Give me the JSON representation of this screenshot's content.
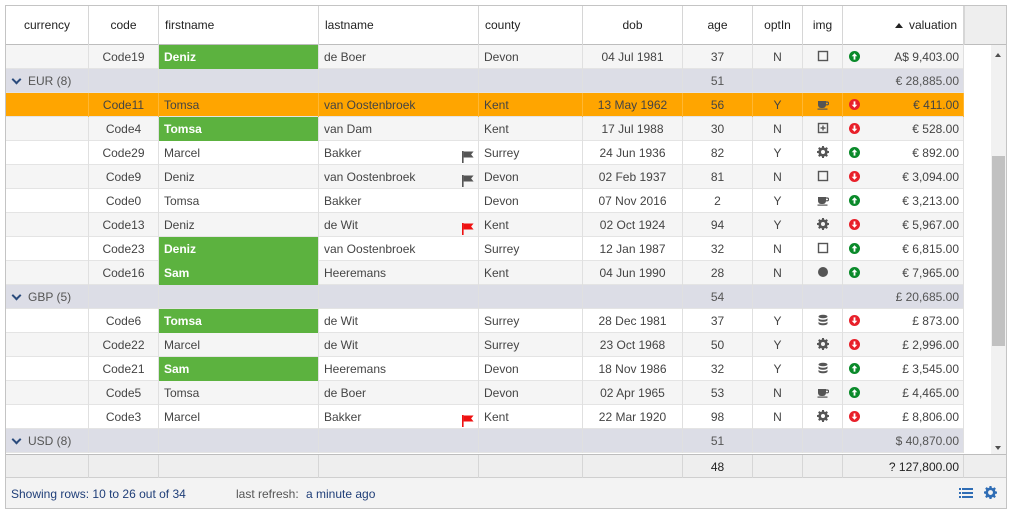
{
  "columns": [
    {
      "key": "currency",
      "label": "currency"
    },
    {
      "key": "code",
      "label": "code"
    },
    {
      "key": "firstname",
      "label": "firstname"
    },
    {
      "key": "lastname",
      "label": "lastname"
    },
    {
      "key": "county",
      "label": "county"
    },
    {
      "key": "dob",
      "label": "dob"
    },
    {
      "key": "age",
      "label": "age"
    },
    {
      "key": "optIn",
      "label": "optIn"
    },
    {
      "key": "img",
      "label": "img"
    },
    {
      "key": "valuation",
      "label": "valuation",
      "sort": "asc"
    }
  ],
  "colors": {
    "group_bg": "#dcdde6",
    "selected_bg": "#ffa500",
    "firstname_highlight": "#5cb23f",
    "trend_up": "#0a8a2a",
    "trend_down": "#e8202a",
    "flag_gray": "#555555",
    "flag_red": "#ee1111",
    "link_text": "#1f3e78"
  },
  "rows": [
    {
      "type": "data",
      "code": "Code19",
      "firstname": "Deniz",
      "highlight": true,
      "lastname": "de Boer",
      "flag": "",
      "county": "Devon",
      "dob": "04 Jul 1981",
      "age": "37",
      "optIn": "N",
      "img": "square-icon",
      "trend": "up",
      "valuation": "A$ 9,403.00"
    },
    {
      "type": "group",
      "label": "EUR (8)",
      "age": "51",
      "valuation": "€ 28,885.00"
    },
    {
      "type": "data",
      "selected": true,
      "code": "Code11",
      "firstname": "Tomsa",
      "highlight": false,
      "lastname": "van Oostenbroek",
      "flag": "",
      "county": "Kent",
      "dob": "13 May 1962",
      "age": "56",
      "optIn": "Y",
      "img": "coffee-icon",
      "trend": "down",
      "valuation": "€ 411.00"
    },
    {
      "type": "data",
      "code": "Code4",
      "firstname": "Tomsa",
      "highlight": true,
      "lastname": "van Dam",
      "flag": "",
      "county": "Kent",
      "dob": "17 Jul 1988",
      "age": "30",
      "optIn": "N",
      "img": "plus-square-icon",
      "trend": "down",
      "valuation": "€ 528.00"
    },
    {
      "type": "data",
      "code": "Code29",
      "firstname": "Marcel",
      "highlight": false,
      "lastname": "Bakker",
      "flag": "gray",
      "county": "Surrey",
      "dob": "24 Jun 1936",
      "age": "82",
      "optIn": "Y",
      "img": "gear-icon",
      "trend": "up",
      "valuation": "€ 892.00"
    },
    {
      "type": "data",
      "code": "Code9",
      "firstname": "Deniz",
      "highlight": false,
      "lastname": "van Oostenbroek",
      "flag": "gray",
      "county": "Devon",
      "dob": "02 Feb 1937",
      "age": "81",
      "optIn": "N",
      "img": "square-icon",
      "trend": "down",
      "valuation": "€ 3,094.00"
    },
    {
      "type": "data",
      "code": "Code0",
      "firstname": "Tomsa",
      "highlight": false,
      "lastname": "Bakker",
      "flag": "",
      "county": "Devon",
      "dob": "07 Nov 2016",
      "age": "2",
      "optIn": "Y",
      "img": "coffee-icon",
      "trend": "up",
      "valuation": "€ 3,213.00"
    },
    {
      "type": "data",
      "code": "Code13",
      "firstname": "Deniz",
      "highlight": false,
      "lastname": "de Wit",
      "flag": "red",
      "county": "Kent",
      "dob": "02 Oct 1924",
      "age": "94",
      "optIn": "Y",
      "img": "gear-icon",
      "trend": "down",
      "valuation": "€ 5,967.00"
    },
    {
      "type": "data",
      "code": "Code23",
      "firstname": "Deniz",
      "highlight": true,
      "lastname": "van Oostenbroek",
      "flag": "",
      "county": "Surrey",
      "dob": "12 Jan 1987",
      "age": "32",
      "optIn": "N",
      "img": "square-icon",
      "trend": "up",
      "valuation": "€ 6,815.00"
    },
    {
      "type": "data",
      "code": "Code16",
      "firstname": "Sam",
      "highlight": true,
      "lastname": "Heeremans",
      "flag": "",
      "county": "Kent",
      "dob": "04 Jun 1990",
      "age": "28",
      "optIn": "N",
      "img": "circle-icon",
      "trend": "up",
      "valuation": "€ 7,965.00"
    },
    {
      "type": "group",
      "label": "GBP (5)",
      "age": "54",
      "valuation": "£ 20,685.00"
    },
    {
      "type": "data",
      "code": "Code6",
      "firstname": "Tomsa",
      "highlight": true,
      "lastname": "de Wit",
      "flag": "",
      "county": "Surrey",
      "dob": "28 Dec 1981",
      "age": "37",
      "optIn": "Y",
      "img": "database-icon",
      "trend": "down",
      "valuation": "£ 873.00"
    },
    {
      "type": "data",
      "code": "Code22",
      "firstname": "Marcel",
      "highlight": false,
      "lastname": "de Wit",
      "flag": "",
      "county": "Surrey",
      "dob": "23 Oct 1968",
      "age": "50",
      "optIn": "Y",
      "img": "gear-icon",
      "trend": "down",
      "valuation": "£ 2,996.00"
    },
    {
      "type": "data",
      "code": "Code21",
      "firstname": "Sam",
      "highlight": true,
      "lastname": "Heeremans",
      "flag": "",
      "county": "Devon",
      "dob": "18 Nov 1986",
      "age": "32",
      "optIn": "Y",
      "img": "database-icon",
      "trend": "up",
      "valuation": "£ 3,545.00"
    },
    {
      "type": "data",
      "code": "Code5",
      "firstname": "Tomsa",
      "highlight": false,
      "lastname": "de Boer",
      "flag": "",
      "county": "Devon",
      "dob": "02 Apr 1965",
      "age": "53",
      "optIn": "N",
      "img": "coffee-icon",
      "trend": "up",
      "valuation": "£ 4,465.00"
    },
    {
      "type": "data",
      "code": "Code3",
      "firstname": "Marcel",
      "highlight": false,
      "lastname": "Bakker",
      "flag": "red",
      "county": "Kent",
      "dob": "22 Mar 1920",
      "age": "98",
      "optIn": "N",
      "img": "gear-icon",
      "trend": "down",
      "valuation": "£ 8,806.00"
    },
    {
      "type": "group",
      "label": "USD (8)",
      "age": "51",
      "valuation": "$ 40,870.00"
    }
  ],
  "footer": {
    "age": "48",
    "valuation": "? 127,800.00"
  },
  "status": {
    "showing_label": "Showing rows:",
    "showing_value": "10 to 26 out of 34",
    "refresh_label": "last refresh:",
    "refresh_value": "a minute ago"
  }
}
